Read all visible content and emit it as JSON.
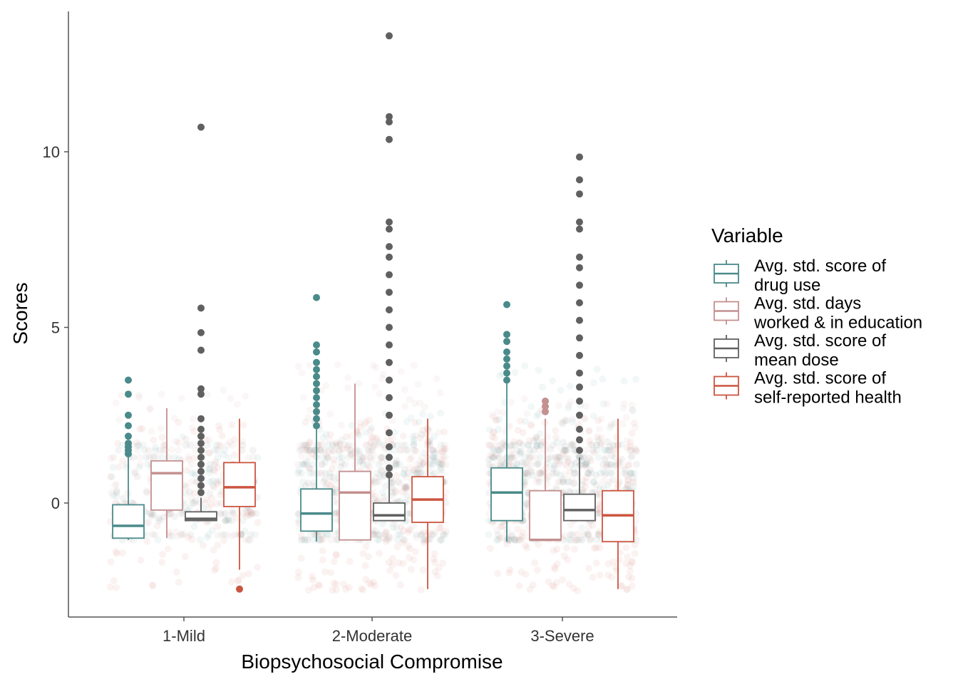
{
  "chart_data": {
    "type": "box",
    "xlabel": "Biopsychosocial Compromise",
    "ylabel": "Scores",
    "ylim": [
      -3.2,
      14.0
    ],
    "yticks": [
      0,
      5,
      10
    ],
    "grid": false,
    "legend": {
      "title": "Variable",
      "placement": "right",
      "entries": [
        {
          "key": "drug",
          "lines": [
            "Avg. std.  score of",
            "drug use"
          ]
        },
        {
          "key": "work",
          "lines": [
            "Avg. std. days",
            "worked & in education"
          ]
        },
        {
          "key": "dose",
          "lines": [
            "Avg. std. score of",
            "mean dose"
          ]
        },
        {
          "key": "health",
          "lines": [
            "Avg. std. score of",
            "self-reported health"
          ]
        }
      ]
    },
    "categories": [
      "1-Mild",
      "2-Moderate",
      "3-Severe"
    ],
    "colors": {
      "drug": "#4a8a8a",
      "work": "#c49090",
      "dose": "#606060",
      "health": "#cc5540"
    },
    "series": [
      {
        "key": "drug",
        "boxes": [
          {
            "q1": -1.0,
            "median": -0.65,
            "q3": -0.05,
            "whisker_low": -1.05,
            "whisker_high": 1.3,
            "outliers": [
              1.4,
              1.5,
              1.6,
              1.7,
              1.9,
              2.2,
              2.5,
              3.1,
              3.5
            ]
          },
          {
            "q1": -0.8,
            "median": -0.3,
            "q3": 0.4,
            "whisker_low": -1.1,
            "whisker_high": 2.1,
            "outliers": [
              2.2,
              2.4,
              2.6,
              2.8,
              3.0,
              3.2,
              3.4,
              3.6,
              3.8,
              4.0,
              4.3,
              4.5,
              5.85
            ]
          },
          {
            "q1": -0.5,
            "median": 0.3,
            "q3": 1.0,
            "whisker_low": -1.1,
            "whisker_high": 3.4,
            "outliers": [
              3.5,
              3.7,
              3.9,
              4.1,
              4.3,
              4.6,
              4.8,
              5.65
            ]
          }
        ]
      },
      {
        "key": "work",
        "boxes": [
          {
            "q1": -0.2,
            "median": 0.85,
            "q3": 1.2,
            "whisker_low": -1.0,
            "whisker_high": 2.7,
            "outliers": []
          },
          {
            "q1": -1.05,
            "median": 0.3,
            "q3": 0.9,
            "whisker_low": -1.05,
            "whisker_high": 3.4,
            "outliers": []
          },
          {
            "q1": -1.05,
            "median": -1.05,
            "q3": 0.35,
            "whisker_low": -1.05,
            "whisker_high": 2.4,
            "outliers": [
              2.6,
              2.75,
              2.9
            ]
          }
        ]
      },
      {
        "key": "dose",
        "boxes": [
          {
            "q1": -0.5,
            "median": -0.45,
            "q3": -0.25,
            "whisker_low": -0.5,
            "whisker_high": 0.15,
            "outliers": [
              0.3,
              0.5,
              0.7,
              0.9,
              1.1,
              1.3,
              1.5,
              1.7,
              1.9,
              2.1,
              2.4,
              3.1,
              3.25,
              4.35,
              4.85,
              5.55,
              10.7
            ]
          },
          {
            "q1": -0.5,
            "median": -0.35,
            "q3": 0.0,
            "whisker_low": -0.5,
            "whisker_high": 0.7,
            "outliers": [
              0.8,
              1.0,
              1.3,
              1.6,
              2.0,
              2.5,
              3.0,
              3.5,
              4.0,
              4.5,
              5.0,
              5.5,
              6.0,
              6.5,
              7.0,
              7.3,
              7.8,
              8.0,
              10.35,
              10.85,
              11.0,
              13.3
            ]
          },
          {
            "q1": -0.5,
            "median": -0.2,
            "q3": 0.25,
            "whisker_low": -0.5,
            "whisker_high": 1.3,
            "outliers": [
              1.5,
              1.8,
              2.1,
              2.5,
              2.9,
              3.3,
              3.7,
              4.2,
              4.7,
              5.2,
              5.7,
              6.2,
              6.7,
              7.0,
              7.8,
              8.0,
              8.8,
              9.2,
              9.85
            ]
          }
        ]
      },
      {
        "key": "health",
        "boxes": [
          {
            "q1": -0.1,
            "median": 0.45,
            "q3": 1.15,
            "whisker_low": -1.9,
            "whisker_high": 2.4,
            "outliers": [
              -2.45
            ]
          },
          {
            "q1": -0.55,
            "median": 0.1,
            "q3": 0.75,
            "whisker_low": -2.45,
            "whisker_high": 2.4,
            "outliers": []
          },
          {
            "q1": -1.1,
            "median": -0.35,
            "q3": 0.35,
            "whisker_low": -2.45,
            "whisker_high": 2.4,
            "outliers": []
          }
        ]
      }
    ]
  }
}
